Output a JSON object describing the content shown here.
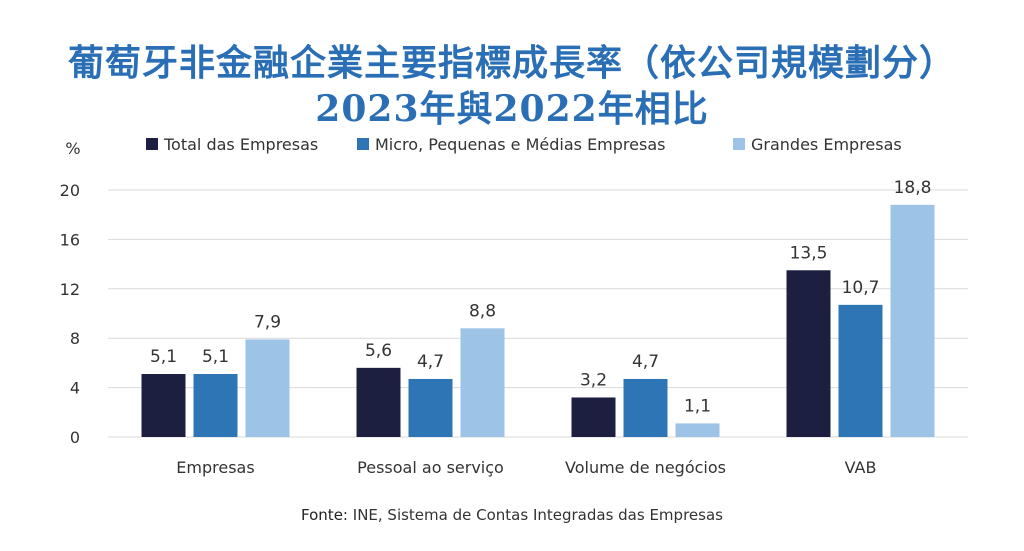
{
  "title_line1": "葡萄牙非金融企業主要指標成長率（依公司規模劃分）",
  "title_line2": "2023年與2022年相比",
  "source_label": "Fonte:",
  "source_text": "INE, Sistema de Contas Integradas das Empresas",
  "colors": {
    "title": "#2a6fb5",
    "total": "#1c1f3f",
    "micro": "#2e75b6",
    "grandes": "#9dc3e6",
    "grid": "#d9d9d9"
  },
  "chart_data": {
    "type": "bar",
    "ylabel": "%",
    "ylim": [
      0,
      20
    ],
    "yticks": [
      0,
      4,
      8,
      12,
      16,
      20
    ],
    "grid": true,
    "legend_position": "top",
    "categories": [
      "Empresas",
      "Pessoal ao serviço",
      "Volume de negócios",
      "VAB"
    ],
    "series": [
      {
        "name": "Total das Empresas",
        "color": "#1c1f3f",
        "values": [
          5.1,
          5.6,
          3.2,
          13.5
        ],
        "labels": [
          "5,1",
          "5,6",
          "3,2",
          "13,5"
        ]
      },
      {
        "name": "Micro, Pequenas e Médias Empresas",
        "color": "#2e75b6",
        "values": [
          5.1,
          4.7,
          4.7,
          10.7
        ],
        "labels": [
          "5,1",
          "4,7",
          "4,7",
          "10,7"
        ]
      },
      {
        "name": "Grandes Empresas",
        "color": "#9dc3e6",
        "values": [
          7.9,
          8.8,
          1.1,
          18.8
        ],
        "labels": [
          "7,9",
          "8,8",
          "1,1",
          "18,8"
        ]
      }
    ]
  }
}
